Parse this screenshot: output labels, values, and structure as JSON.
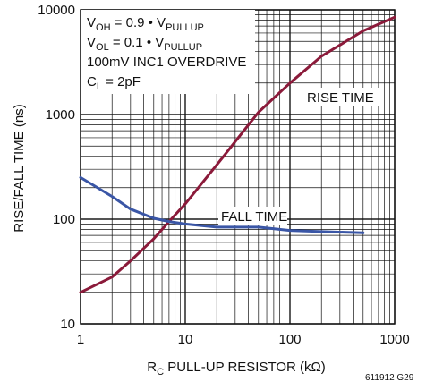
{
  "figure_code": "611912 G29",
  "notes": {
    "voh": {
      "a": "V",
      "a_sub": "OH",
      "b": " = 0.9 • V",
      "b_sub": "PULLUP"
    },
    "vol": {
      "a": "V",
      "a_sub": "OL",
      "b": " = 0.1 • V",
      "b_sub": "PULLUP"
    },
    "overdrive": "100mV INC1 OVERDRIVE",
    "cl": {
      "a": "C",
      "a_sub": "L",
      "b": " = 2pF"
    }
  },
  "chart_data": {
    "type": "line",
    "x_scale": "log",
    "y_scale": "log",
    "xlim": [
      1,
      1000
    ],
    "ylim": [
      10,
      10000
    ],
    "grid": true,
    "xlabel": {
      "a": "R",
      "a_sub": "C",
      "b": " PULL-UP RESISTOR (kΩ)"
    },
    "ylabel": "RISE/FALL TIME (ns)",
    "x_ticks": [
      1,
      10,
      100,
      1000
    ],
    "x_tick_labels": [
      "1",
      "10",
      "100",
      "1000"
    ],
    "y_ticks": [
      10,
      100,
      1000,
      10000
    ],
    "y_tick_labels": [
      "10",
      "100",
      "1000",
      "10000"
    ],
    "series": [
      {
        "name": "RISE TIME",
        "color": "#8b1a3a",
        "x": [
          1,
          2,
          3,
          5,
          7,
          10,
          20,
          50,
          100,
          200,
          500,
          1000
        ],
        "y": [
          20,
          28,
          40,
          65,
          95,
          140,
          330,
          1050,
          2000,
          3600,
          6300,
          8500
        ]
      },
      {
        "name": "FALL TIME",
        "color": "#3a56a6",
        "x": [
          1,
          2,
          3,
          5,
          7,
          10,
          20,
          50,
          100,
          200,
          500
        ],
        "y": [
          250,
          165,
          125,
          102,
          95,
          90,
          84,
          84,
          78,
          76,
          74
        ]
      }
    ]
  }
}
